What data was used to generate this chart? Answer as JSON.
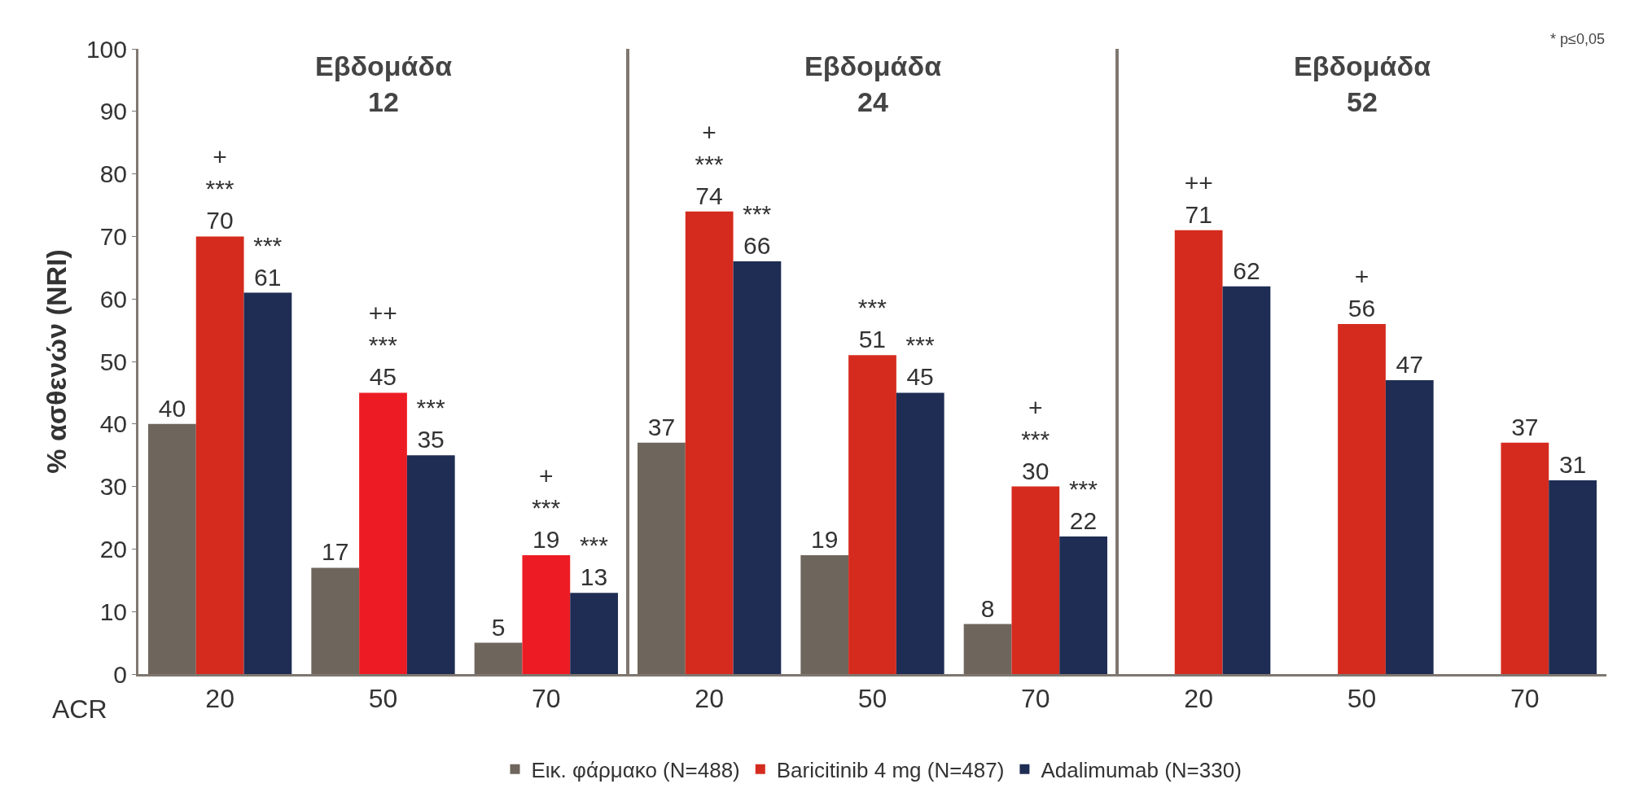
{
  "chart_data": {
    "type": "bar",
    "ylabel": "% ασθενών (NRI)",
    "xlabel": "ACR",
    "categories": [
      "20",
      "50",
      "70",
      "20",
      "50",
      "70",
      "20",
      "50",
      "70"
    ],
    "series": [
      {
        "name": "Εικ. φάρμακο (N=488)",
        "color": "#6e655c",
        "values": [
          40,
          17,
          5,
          37,
          19,
          8,
          null,
          null,
          null
        ],
        "value_labels": [
          "40",
          "17",
          "5",
          "37",
          "19",
          "8",
          null,
          null,
          null
        ]
      },
      {
        "name": "Baricitinib 4 mg (N=487)",
        "color": "#d52b1e",
        "colors": [
          "#d52b1e",
          "#ed1c24",
          "#ed1c24",
          "#d52b1e",
          "#d52b1e",
          "#d52b1e",
          "#d52b1e",
          "#d52b1e",
          "#d52b1e"
        ],
        "values": [
          70,
          45,
          19,
          74,
          51,
          30,
          71,
          56,
          37
        ],
        "value_labels": [
          "+\n***\n70",
          "++\n***\n45",
          "+\n***\n19",
          "+\n***\n74",
          "***\n51",
          "+\n***\n30",
          "++\n71",
          "+\n56",
          "37"
        ]
      },
      {
        "name": "Adalimumab (N=330)",
        "color": "#1f2d54",
        "values": [
          61,
          35,
          13,
          66,
          45,
          22,
          62,
          47,
          31
        ],
        "value_labels": [
          "***\n61",
          "***\n35",
          "***\n13",
          "***\n66",
          "***\n45",
          "***\n22",
          "62",
          "47",
          "31"
        ]
      }
    ],
    "annotations": [
      "Εβδομάδα\n12",
      "Εβδομάδα\n24",
      "Εβδομάδα\n52",
      "* p≤0,05"
    ],
    "ylim": [
      0,
      100
    ],
    "yticks": [
      0,
      10,
      20,
      30,
      40,
      50,
      60,
      70,
      80,
      90,
      100
    ],
    "legend": "bottom"
  }
}
